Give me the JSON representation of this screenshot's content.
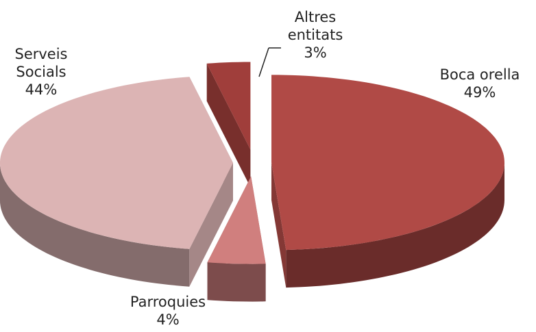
{
  "chart_data": {
    "type": "pie",
    "categories": [
      "Boca orella",
      "Parroquies",
      "Serveis Socials",
      "Altres entitats"
    ],
    "values": [
      49,
      4,
      44,
      3
    ],
    "value_labels": [
      "49%",
      "4%",
      "44%",
      "3%"
    ],
    "colors": [
      "#b04a46",
      "#d07f7e",
      "#dcb4b4",
      "#a03e3b"
    ]
  }
}
